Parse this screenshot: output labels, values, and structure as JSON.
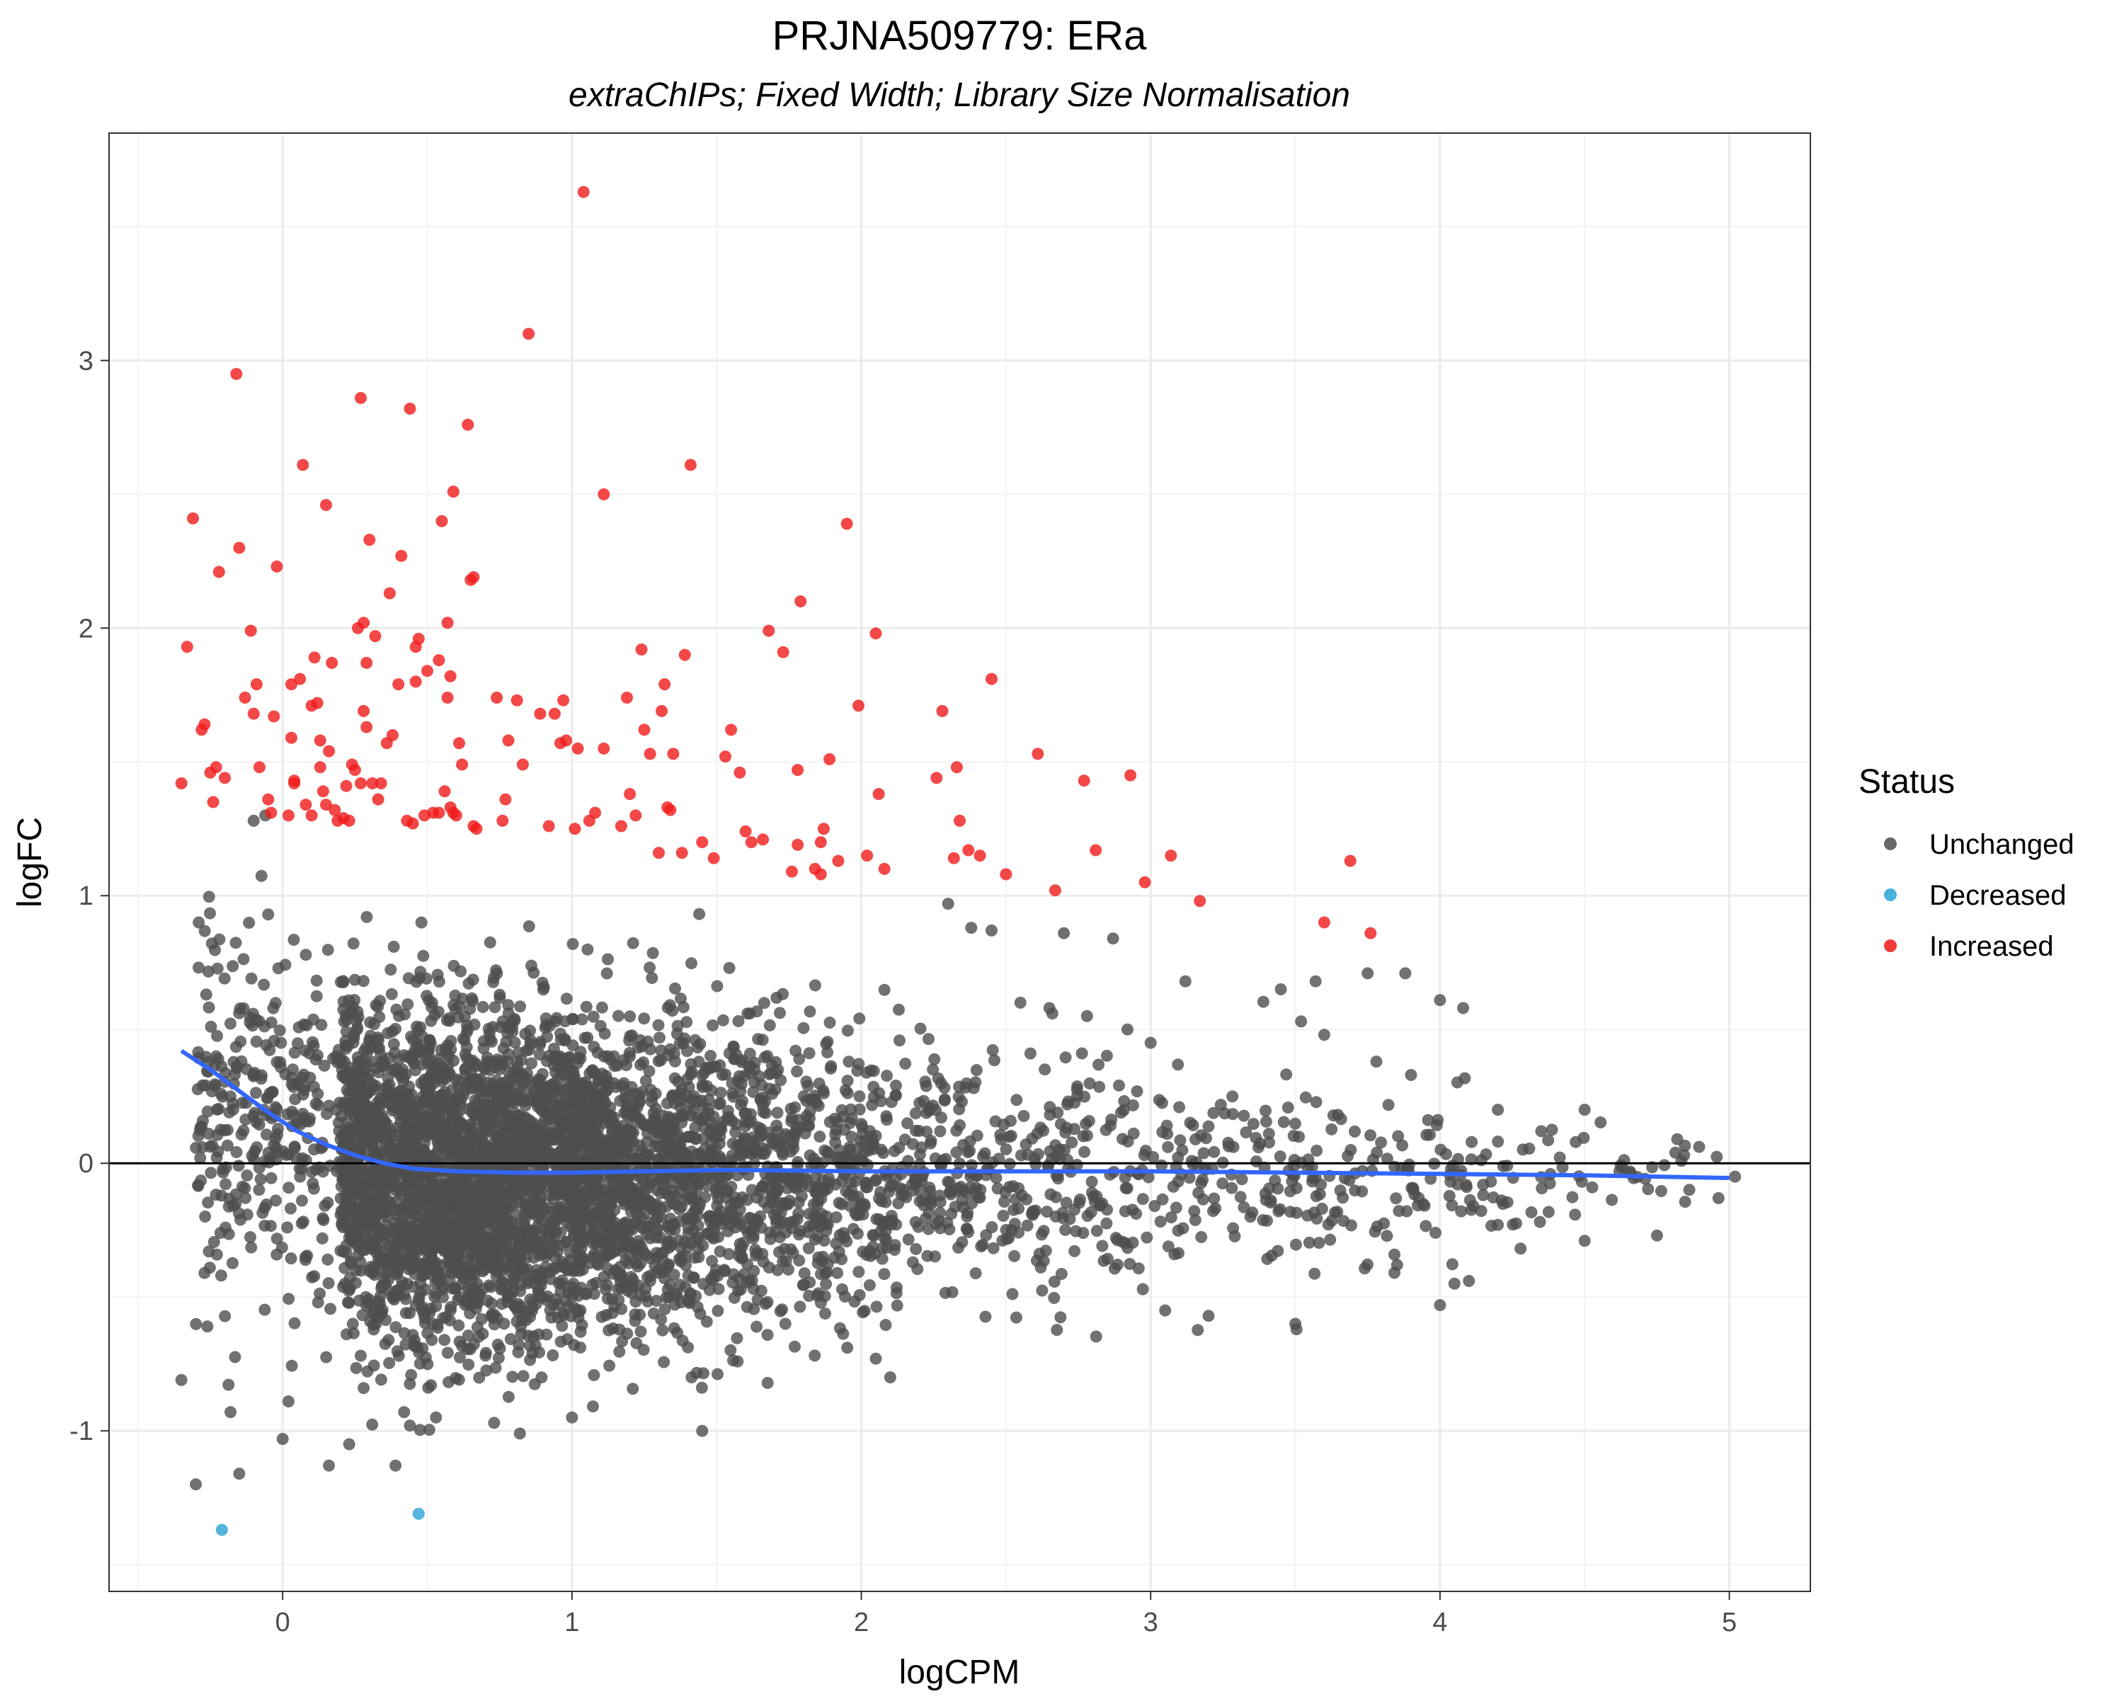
{
  "chart_data": {
    "type": "scatter",
    "title": "PRJNA509779: ERa",
    "subtitle": "extraChIPs; Fixed Width; Library Size Normalisation",
    "xlabel": "logCPM",
    "ylabel": "logFC",
    "xlim": [
      -0.6,
      5.28
    ],
    "ylim": [
      -1.6,
      3.85
    ],
    "x_ticks": [
      0,
      1,
      2,
      3,
      4,
      5
    ],
    "x_tick_labels": [
      "0",
      "1",
      "2",
      "3",
      "4",
      "5"
    ],
    "y_ticks": [
      -1,
      0,
      1,
      2,
      3
    ],
    "y_tick_labels": [
      "-1",
      "0",
      "1",
      "2",
      "3"
    ],
    "grid": true,
    "hline_y": 0,
    "legend": {
      "title": "Status",
      "position": "right",
      "entries": [
        {
          "label": "Unchanged",
          "color": "#4d4d4d"
        },
        {
          "label": "Decreased",
          "color": "#29a3d6"
        },
        {
          "label": "Increased",
          "color": "#f01a1a"
        }
      ]
    },
    "colors": {
      "Unchanged": "#4d4d4d",
      "Decreased": "#29a3d6",
      "Increased": "#f01a1a",
      "trend": "#3366ff"
    },
    "increased_points": [
      [
        -0.35,
        1.42
      ],
      [
        -0.33,
        1.93
      ],
      [
        -0.31,
        2.41
      ],
      [
        -0.28,
        1.62
      ],
      [
        -0.27,
        1.64
      ],
      [
        -0.25,
        1.46
      ],
      [
        -0.24,
        1.35
      ],
      [
        -0.23,
        1.48
      ],
      [
        -0.22,
        2.21
      ],
      [
        -0.2,
        1.44
      ],
      [
        -0.16,
        2.95
      ],
      [
        -0.15,
        2.3
      ],
      [
        -0.13,
        1.74
      ],
      [
        -0.11,
        1.99
      ],
      [
        -0.1,
        1.68
      ],
      [
        -0.09,
        1.79
      ],
      [
        -0.08,
        1.48
      ],
      [
        -0.05,
        1.36
      ],
      [
        -0.04,
        1.31
      ],
      [
        -0.03,
        1.67
      ],
      [
        -0.02,
        2.23
      ],
      [
        0.02,
        1.3
      ],
      [
        0.03,
        1.79
      ],
      [
        0.03,
        1.59
      ],
      [
        0.04,
        1.42
      ],
      [
        0.04,
        1.43
      ],
      [
        0.06,
        1.81
      ],
      [
        0.07,
        2.61
      ],
      [
        0.08,
        1.34
      ],
      [
        0.1,
        1.3
      ],
      [
        0.1,
        1.71
      ],
      [
        0.11,
        1.89
      ],
      [
        0.12,
        1.72
      ],
      [
        0.13,
        1.58
      ],
      [
        0.13,
        1.48
      ],
      [
        0.14,
        1.39
      ],
      [
        0.15,
        2.46
      ],
      [
        0.15,
        1.34
      ],
      [
        0.16,
        1.54
      ],
      [
        0.17,
        1.87
      ],
      [
        0.18,
        1.32
      ],
      [
        0.19,
        1.28
      ],
      [
        0.21,
        1.29
      ],
      [
        0.22,
        1.41
      ],
      [
        0.23,
        1.28
      ],
      [
        0.24,
        1.49
      ],
      [
        0.25,
        1.47
      ],
      [
        0.26,
        2.0
      ],
      [
        0.27,
        2.86
      ],
      [
        0.27,
        1.42
      ],
      [
        0.28,
        1.69
      ],
      [
        0.28,
        2.02
      ],
      [
        0.29,
        1.63
      ],
      [
        0.29,
        1.87
      ],
      [
        0.3,
        2.33
      ],
      [
        0.31,
        1.42
      ],
      [
        0.32,
        1.97
      ],
      [
        0.33,
        1.36
      ],
      [
        0.34,
        1.42
      ],
      [
        0.36,
        1.57
      ],
      [
        0.37,
        2.13
      ],
      [
        0.38,
        1.6
      ],
      [
        0.4,
        1.79
      ],
      [
        0.41,
        2.27
      ],
      [
        0.43,
        1.28
      ],
      [
        0.44,
        2.82
      ],
      [
        0.45,
        1.27
      ],
      [
        0.46,
        1.8
      ],
      [
        0.46,
        1.93
      ],
      [
        0.47,
        1.96
      ],
      [
        0.49,
        1.3
      ],
      [
        0.5,
        1.84
      ],
      [
        0.52,
        1.31
      ],
      [
        0.54,
        1.88
      ],
      [
        0.54,
        1.31
      ],
      [
        0.55,
        2.4
      ],
      [
        0.56,
        1.39
      ],
      [
        0.57,
        2.02
      ],
      [
        0.57,
        1.74
      ],
      [
        0.58,
        1.33
      ],
      [
        0.58,
        1.82
      ],
      [
        0.59,
        2.51
      ],
      [
        0.59,
        1.31
      ],
      [
        0.6,
        1.3
      ],
      [
        0.61,
        1.57
      ],
      [
        0.62,
        1.49
      ],
      [
        0.64,
        2.76
      ],
      [
        0.65,
        2.18
      ],
      [
        0.66,
        2.19
      ],
      [
        0.66,
        1.26
      ],
      [
        0.67,
        1.25
      ],
      [
        0.74,
        1.74
      ],
      [
        0.76,
        1.28
      ],
      [
        0.77,
        1.36
      ],
      [
        0.78,
        1.58
      ],
      [
        0.81,
        1.73
      ],
      [
        0.83,
        1.49
      ],
      [
        0.85,
        3.1
      ],
      [
        0.89,
        1.68
      ],
      [
        0.92,
        1.26
      ],
      [
        0.94,
        1.68
      ],
      [
        0.96,
        1.57
      ],
      [
        0.97,
        1.73
      ],
      [
        0.98,
        1.58
      ],
      [
        1.01,
        1.25
      ],
      [
        1.02,
        1.55
      ],
      [
        1.04,
        3.63
      ],
      [
        1.06,
        1.28
      ],
      [
        1.08,
        1.31
      ],
      [
        1.11,
        2.5
      ],
      [
        1.11,
        1.55
      ],
      [
        1.17,
        1.26
      ],
      [
        1.19,
        1.74
      ],
      [
        1.2,
        1.38
      ],
      [
        1.22,
        1.3
      ],
      [
        1.24,
        1.92
      ],
      [
        1.25,
        1.62
      ],
      [
        1.27,
        1.53
      ],
      [
        1.3,
        1.16
      ],
      [
        1.31,
        1.69
      ],
      [
        1.32,
        1.79
      ],
      [
        1.33,
        1.33
      ],
      [
        1.34,
        1.32
      ],
      [
        1.35,
        1.53
      ],
      [
        1.38,
        1.16
      ],
      [
        1.39,
        1.9
      ],
      [
        1.41,
        2.61
      ],
      [
        1.45,
        1.2
      ],
      [
        1.49,
        1.14
      ],
      [
        1.53,
        1.52
      ],
      [
        1.55,
        1.62
      ],
      [
        1.58,
        1.46
      ],
      [
        1.6,
        1.24
      ],
      [
        1.62,
        1.2
      ],
      [
        1.66,
        1.21
      ],
      [
        1.68,
        1.99
      ],
      [
        1.73,
        1.91
      ],
      [
        1.76,
        1.09
      ],
      [
        1.78,
        1.47
      ],
      [
        1.78,
        1.19
      ],
      [
        1.79,
        2.1
      ],
      [
        1.84,
        1.1
      ],
      [
        1.86,
        1.08
      ],
      [
        1.86,
        1.2
      ],
      [
        1.87,
        1.25
      ],
      [
        1.89,
        1.51
      ],
      [
        1.92,
        1.13
      ],
      [
        1.95,
        2.39
      ],
      [
        1.99,
        1.71
      ],
      [
        2.02,
        1.15
      ],
      [
        2.05,
        1.98
      ],
      [
        2.06,
        1.38
      ],
      [
        2.08,
        1.1
      ],
      [
        2.26,
        1.44
      ],
      [
        2.28,
        1.69
      ],
      [
        2.32,
        1.14
      ],
      [
        2.33,
        1.48
      ],
      [
        2.34,
        1.28
      ],
      [
        2.37,
        1.17
      ],
      [
        2.41,
        1.15
      ],
      [
        2.45,
        1.81
      ],
      [
        2.5,
        1.08
      ],
      [
        2.61,
        1.53
      ],
      [
        2.67,
        1.02
      ],
      [
        2.77,
        1.43
      ],
      [
        2.81,
        1.17
      ],
      [
        2.93,
        1.45
      ],
      [
        2.98,
        1.05
      ],
      [
        3.07,
        1.15
      ],
      [
        3.17,
        0.98
      ],
      [
        3.6,
        0.9
      ],
      [
        3.69,
        1.13
      ],
      [
        3.76,
        0.86
      ]
    ],
    "decreased_points": [
      [
        -0.21,
        -1.37
      ],
      [
        0.47,
        -1.31
      ]
    ],
    "unchanged_outliers": [
      [
        -0.35,
        -0.81
      ],
      [
        -0.3,
        -1.2
      ],
      [
        -0.29,
        0.9
      ],
      [
        -0.27,
        -0.41
      ],
      [
        -0.26,
        -0.61
      ],
      [
        -0.18,
        -0.93
      ],
      [
        -0.15,
        -1.16
      ],
      [
        -0.1,
        1.28
      ],
      [
        -0.06,
        1.3
      ],
      [
        -0.05,
        0.93
      ],
      [
        0.0,
        -1.03
      ],
      [
        0.02,
        -0.89
      ],
      [
        0.16,
        -1.13
      ],
      [
        0.23,
        -1.05
      ],
      [
        0.39,
        -1.13
      ],
      [
        0.42,
        -0.93
      ],
      [
        0.44,
        -0.98
      ],
      [
        0.53,
        -0.95
      ],
      [
        0.82,
        -1.01
      ],
      [
        1.0,
        -0.95
      ],
      [
        1.45,
        -1.0
      ],
      [
        2.1,
        -0.8
      ],
      [
        2.05,
        -0.73
      ],
      [
        2.3,
        0.97
      ],
      [
        2.38,
        0.88
      ],
      [
        2.45,
        0.87
      ],
      [
        2.7,
        0.86
      ],
      [
        2.87,
        0.84
      ],
      [
        3.12,
        0.68
      ],
      [
        3.45,
        0.65
      ],
      [
        3.57,
        0.68
      ],
      [
        3.75,
        0.71
      ],
      [
        3.88,
        0.71
      ],
      [
        4.0,
        0.61
      ],
      [
        4.08,
        0.58
      ],
      [
        3.5,
        -0.6
      ],
      [
        3.2,
        -0.57
      ],
      [
        3.05,
        -0.55
      ],
      [
        4.0,
        -0.53
      ],
      [
        4.05,
        -0.45
      ],
      [
        4.1,
        -0.44
      ],
      [
        4.2,
        -0.23
      ],
      [
        4.5,
        -0.29
      ],
      [
        4.75,
        -0.27
      ],
      [
        4.82,
        0.09
      ],
      [
        5.02,
        -0.05
      ],
      [
        4.62,
        -0.03
      ],
      [
        4.5,
        0.2
      ],
      [
        4.35,
        0.12
      ],
      [
        4.2,
        0.2
      ],
      [
        3.9,
        0.33
      ],
      [
        3.78,
        0.38
      ],
      [
        3.6,
        0.48
      ],
      [
        3.52,
        0.53
      ],
      [
        2.55,
        0.6
      ],
      [
        2.65,
        0.58
      ],
      [
        2.78,
        0.55
      ],
      [
        2.92,
        0.5
      ],
      [
        3.0,
        0.45
      ]
    ],
    "unchanged_count_approx": 5200,
    "trend_line": [
      [
        -0.35,
        0.42
      ],
      [
        -0.25,
        0.35
      ],
      [
        -0.15,
        0.27
      ],
      [
        -0.05,
        0.19
      ],
      [
        0.05,
        0.12
      ],
      [
        0.15,
        0.07
      ],
      [
        0.25,
        0.03
      ],
      [
        0.35,
        0.0
      ],
      [
        0.45,
        -0.02
      ],
      [
        0.6,
        -0.03
      ],
      [
        0.8,
        -0.035
      ],
      [
        1.0,
        -0.035
      ],
      [
        1.25,
        -0.03
      ],
      [
        1.5,
        -0.025
      ],
      [
        1.75,
        -0.027
      ],
      [
        2.0,
        -0.03
      ],
      [
        2.5,
        -0.03
      ],
      [
        3.0,
        -0.03
      ],
      [
        3.5,
        -0.035
      ],
      [
        4.0,
        -0.04
      ],
      [
        4.5,
        -0.045
      ],
      [
        5.0,
        -0.055
      ]
    ]
  }
}
